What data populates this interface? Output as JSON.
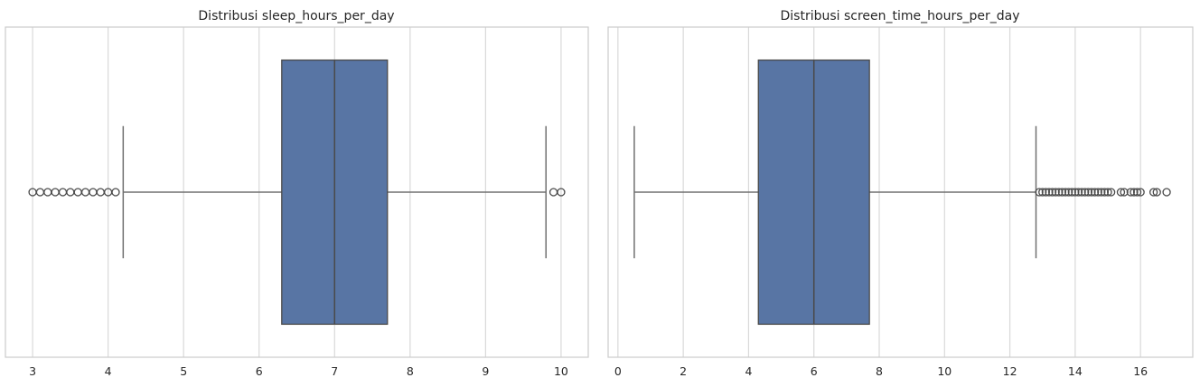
{
  "chart_data": [
    {
      "type": "box",
      "orientation": "horizontal",
      "title": "Distribusi sleep_hours_per_day",
      "xlabel": "",
      "ylabel": "",
      "xlim": [
        2.64,
        10.36
      ],
      "xticks": [
        3,
        4,
        5,
        6,
        7,
        8,
        9,
        10
      ],
      "grid": true,
      "color": "#5875a4",
      "stats": {
        "whislo": 4.2,
        "q1": 6.3,
        "median": 7.0,
        "q3": 7.7,
        "whishi": 9.8
      },
      "outliers": [
        3.0,
        3.1,
        3.2,
        3.3,
        3.4,
        3.5,
        3.6,
        3.7,
        3.8,
        3.9,
        4.0,
        4.1,
        9.9,
        10.0
      ]
    },
    {
      "type": "box",
      "orientation": "horizontal",
      "title": "Distribusi screen_time_hours_per_day",
      "xlabel": "",
      "ylabel": "",
      "xlim": [
        -0.3,
        17.6
      ],
      "xticks": [
        0,
        2,
        4,
        6,
        8,
        10,
        12,
        14,
        16
      ],
      "grid": true,
      "color": "#5875a4",
      "stats": {
        "whislo": 0.5,
        "q1": 4.3,
        "median": 6.0,
        "q3": 7.7,
        "whishi": 12.8
      },
      "outliers": [
        12.9,
        13.0,
        13.1,
        13.2,
        13.3,
        13.4,
        13.5,
        13.6,
        13.7,
        13.8,
        13.9,
        14.0,
        14.1,
        14.2,
        14.3,
        14.4,
        14.5,
        14.6,
        14.7,
        14.8,
        14.9,
        15.0,
        15.1,
        15.4,
        15.5,
        15.7,
        15.8,
        15.9,
        16.0,
        16.4,
        16.5,
        16.8
      ]
    }
  ]
}
